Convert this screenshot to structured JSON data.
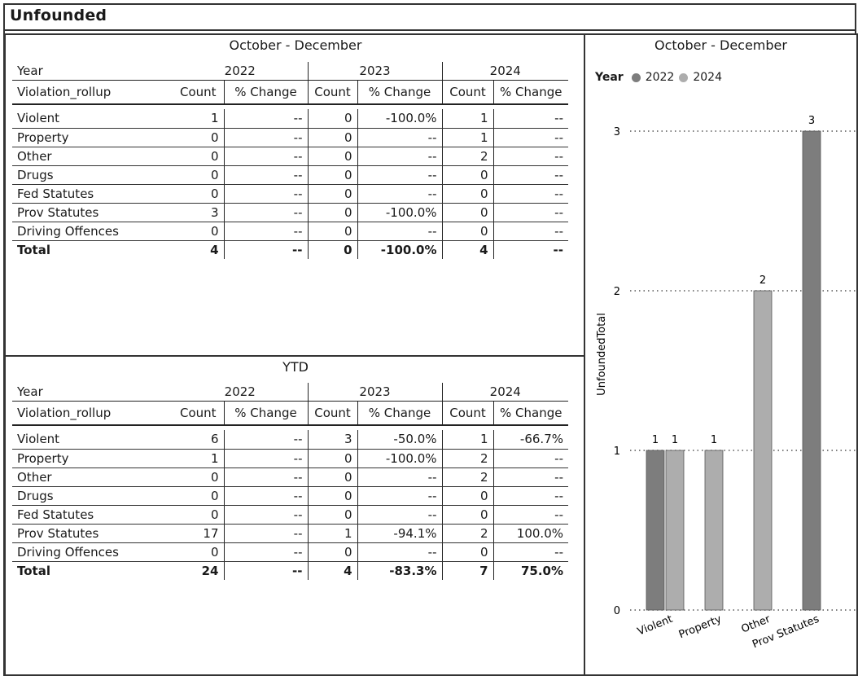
{
  "report": {
    "title": "Unfounded"
  },
  "quarter_table": {
    "heading": "October - December",
    "year_label": "Year",
    "row_label": "Violation_rollup",
    "years": [
      "2022",
      "2023",
      "2024"
    ],
    "count_label": "Count",
    "change_label": "% Change",
    "rows": [
      {
        "name": "Violent",
        "c2022": "1",
        "p2022": "--",
        "c2023": "0",
        "p2023": "-100.0%",
        "c2024": "1",
        "p2024": "--"
      },
      {
        "name": "Property",
        "c2022": "0",
        "p2022": "--",
        "c2023": "0",
        "p2023": "--",
        "c2024": "1",
        "p2024": "--"
      },
      {
        "name": "Other",
        "c2022": "0",
        "p2022": "--",
        "c2023": "0",
        "p2023": "--",
        "c2024": "2",
        "p2024": "--"
      },
      {
        "name": "Drugs",
        "c2022": "0",
        "p2022": "--",
        "c2023": "0",
        "p2023": "--",
        "c2024": "0",
        "p2024": "--"
      },
      {
        "name": "Fed Statutes",
        "c2022": "0",
        "p2022": "--",
        "c2023": "0",
        "p2023": "--",
        "c2024": "0",
        "p2024": "--"
      },
      {
        "name": "Prov Statutes",
        "c2022": "3",
        "p2022": "--",
        "c2023": "0",
        "p2023": "-100.0%",
        "c2024": "0",
        "p2024": "--"
      },
      {
        "name": "Driving Offences",
        "c2022": "0",
        "p2022": "--",
        "c2023": "0",
        "p2023": "--",
        "c2024": "0",
        "p2024": "--"
      }
    ],
    "total": {
      "name": "Total",
      "c2022": "4",
      "p2022": "--",
      "c2023": "0",
      "p2023": "-100.0%",
      "c2024": "4",
      "p2024": "--"
    }
  },
  "ytd_table": {
    "heading": "YTD",
    "year_label": "Year",
    "row_label": "Violation_rollup",
    "years": [
      "2022",
      "2023",
      "2024"
    ],
    "count_label": "Count",
    "change_label": "% Change",
    "rows": [
      {
        "name": "Violent",
        "c2022": "6",
        "p2022": "--",
        "c2023": "3",
        "p2023": "-50.0%",
        "c2024": "1",
        "p2024": "-66.7%"
      },
      {
        "name": "Property",
        "c2022": "1",
        "p2022": "--",
        "c2023": "0",
        "p2023": "-100.0%",
        "c2024": "2",
        "p2024": "--"
      },
      {
        "name": "Other",
        "c2022": "0",
        "p2022": "--",
        "c2023": "0",
        "p2023": "--",
        "c2024": "2",
        "p2024": "--"
      },
      {
        "name": "Drugs",
        "c2022": "0",
        "p2022": "--",
        "c2023": "0",
        "p2023": "--",
        "c2024": "0",
        "p2024": "--"
      },
      {
        "name": "Fed Statutes",
        "c2022": "0",
        "p2022": "--",
        "c2023": "0",
        "p2023": "--",
        "c2024": "0",
        "p2024": "--"
      },
      {
        "name": "Prov Statutes",
        "c2022": "17",
        "p2022": "--",
        "c2023": "1",
        "p2023": "-94.1%",
        "c2024": "2",
        "p2024": "100.0%"
      },
      {
        "name": "Driving Offences",
        "c2022": "0",
        "p2022": "--",
        "c2023": "0",
        "p2023": "--",
        "c2024": "0",
        "p2024": "--"
      }
    ],
    "total": {
      "name": "Total",
      "c2022": "24",
      "p2022": "--",
      "c2023": "4",
      "p2023": "-83.3%",
      "c2024": "7",
      "p2024": "75.0%"
    }
  },
  "chart_data": {
    "type": "bar",
    "title": "October - December",
    "legend_title": "Year",
    "legend_position": "top-left",
    "ylabel": "UnfoundedTotal",
    "xlabel": "",
    "ylim": [
      0,
      3
    ],
    "yticks": [
      0,
      1,
      2,
      3
    ],
    "grid": true,
    "categories": [
      "Violent",
      "Property",
      "Other",
      "Prov Statutes"
    ],
    "series": [
      {
        "name": "2022",
        "color": "#7d7d7d",
        "values": [
          1,
          null,
          null,
          3
        ]
      },
      {
        "name": "2024",
        "color": "#adadad",
        "values": [
          1,
          1,
          2,
          null
        ]
      }
    ]
  }
}
